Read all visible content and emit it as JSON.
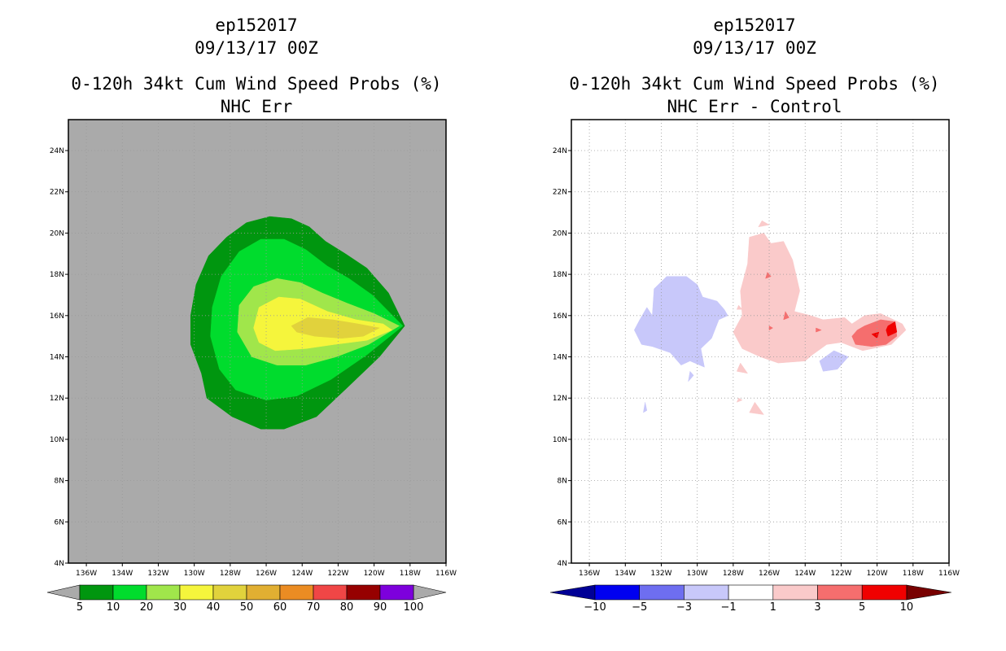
{
  "chart_data": [
    {
      "type": "heatmap",
      "title_lines": [
        "ep152017",
        "09/13/17 00Z",
        "0-120h 34kt Cum Wind Speed Probs (%)",
        "NHC Err"
      ],
      "x_ticks": [
        "136W",
        "134W",
        "132W",
        "130W",
        "128W",
        "126W",
        "124W",
        "122W",
        "120W",
        "118W",
        "116W"
      ],
      "y_ticks": [
        "4N",
        "6N",
        "8N",
        "10N",
        "12N",
        "14N",
        "16N",
        "18N",
        "20N",
        "22N",
        "24N"
      ],
      "xlim": [
        -137,
        -116
      ],
      "ylim": [
        4,
        25.5
      ],
      "grid": true,
      "background": "#aaaaaa",
      "colorbar": {
        "labels": [
          "5",
          "10",
          "20",
          "30",
          "40",
          "50",
          "60",
          "70",
          "80",
          "90",
          "100"
        ],
        "colors": [
          "#00960f",
          "#00dc2d",
          "#a0e64b",
          "#f5f53c",
          "#e1d23c",
          "#e1af32",
          "#eb8c23",
          "#f04646",
          "#960000",
          "#7d00dc"
        ],
        "arrow_colors": [
          "#aaaaaa",
          "#aaaaaa"
        ]
      },
      "contours": [
        {
          "level": "5",
          "color": "#00960f",
          "points": [
            [
              -130.2,
              14.6
            ],
            [
              -130.2,
              16.0
            ],
            [
              -129.9,
              17.5
            ],
            [
              -129.2,
              18.9
            ],
            [
              -128.2,
              19.8
            ],
            [
              -127.1,
              20.5
            ],
            [
              -125.8,
              20.8
            ],
            [
              -124.6,
              20.7
            ],
            [
              -123.6,
              20.3
            ],
            [
              -122.7,
              19.6
            ],
            [
              -121.6,
              19.0
            ],
            [
              -120.4,
              18.3
            ],
            [
              -119.2,
              17.1
            ],
            [
              -118.3,
              15.5
            ],
            [
              -119.7,
              14.0
            ],
            [
              -121.5,
              12.5
            ],
            [
              -123.2,
              11.1
            ],
            [
              -125.0,
              10.5
            ],
            [
              -126.3,
              10.5
            ],
            [
              -127.9,
              11.1
            ],
            [
              -129.3,
              12.0
            ],
            [
              -129.6,
              13.2
            ],
            [
              -130.2,
              14.6
            ]
          ]
        },
        {
          "level": "10",
          "color": "#00dc2d",
          "points": [
            [
              -129.1,
              15.0
            ],
            [
              -129.0,
              16.4
            ],
            [
              -128.5,
              17.9
            ],
            [
              -127.5,
              19.1
            ],
            [
              -126.3,
              19.7
            ],
            [
              -125.0,
              19.7
            ],
            [
              -123.8,
              19.2
            ],
            [
              -122.6,
              18.4
            ],
            [
              -121.4,
              17.8
            ],
            [
              -120.1,
              17.0
            ],
            [
              -118.4,
              15.5
            ],
            [
              -120.4,
              14.1
            ],
            [
              -122.4,
              12.9
            ],
            [
              -124.3,
              12.1
            ],
            [
              -126.0,
              11.9
            ],
            [
              -127.7,
              12.4
            ],
            [
              -128.6,
              13.4
            ],
            [
              -129.1,
              15.0
            ]
          ]
        },
        {
          "level": "20",
          "color": "#a0e64b",
          "points": [
            [
              -127.6,
              15.2
            ],
            [
              -127.5,
              16.5
            ],
            [
              -126.7,
              17.4
            ],
            [
              -125.4,
              17.8
            ],
            [
              -124.1,
              17.6
            ],
            [
              -122.9,
              17.1
            ],
            [
              -121.5,
              16.6
            ],
            [
              -120.0,
              16.1
            ],
            [
              -118.6,
              15.5
            ],
            [
              -120.3,
              14.6
            ],
            [
              -122.1,
              14.0
            ],
            [
              -123.8,
              13.6
            ],
            [
              -125.4,
              13.6
            ],
            [
              -126.8,
              14.0
            ],
            [
              -127.6,
              15.2
            ]
          ]
        },
        {
          "level": "30",
          "color": "#f5f53c",
          "points": [
            [
              -126.7,
              15.4
            ],
            [
              -126.4,
              16.4
            ],
            [
              -125.3,
              16.9
            ],
            [
              -124.1,
              16.8
            ],
            [
              -122.6,
              16.2
            ],
            [
              -121.0,
              15.8
            ],
            [
              -119.5,
              15.6
            ],
            [
              -119.0,
              15.3
            ],
            [
              -120.4,
              14.8
            ],
            [
              -122.2,
              14.6
            ],
            [
              -123.8,
              14.4
            ],
            [
              -125.5,
              14.3
            ],
            [
              -126.4,
              14.7
            ],
            [
              -126.7,
              15.4
            ]
          ]
        },
        {
          "level": "40",
          "color": "#e1d23c",
          "points": [
            [
              -124.6,
              15.5
            ],
            [
              -123.7,
              15.9
            ],
            [
              -122.3,
              15.8
            ],
            [
              -120.9,
              15.6
            ],
            [
              -119.7,
              15.4
            ],
            [
              -120.6,
              15.0
            ],
            [
              -121.8,
              14.9
            ],
            [
              -123.3,
              15.0
            ],
            [
              -124.3,
              15.2
            ],
            [
              -124.6,
              15.5
            ]
          ]
        }
      ]
    },
    {
      "type": "heatmap",
      "title_lines": [
        "ep152017",
        "09/13/17 00Z",
        "0-120h 34kt Cum Wind Speed Probs (%)",
        "NHC Err - Control"
      ],
      "x_ticks": [
        "136W",
        "134W",
        "132W",
        "130W",
        "128W",
        "126W",
        "124W",
        "122W",
        "120W",
        "118W",
        "116W"
      ],
      "y_ticks": [
        "4N",
        "6N",
        "8N",
        "10N",
        "12N",
        "14N",
        "16N",
        "18N",
        "20N",
        "22N",
        "24N"
      ],
      "xlim": [
        -137,
        -116
      ],
      "ylim": [
        4,
        25.5
      ],
      "grid": true,
      "background": "#ffffff",
      "colorbar": {
        "labels": [
          "-10",
          "-5",
          "-3",
          "-1",
          "1",
          "3",
          "5",
          "10"
        ],
        "colors": [
          "#0000f0",
          "#6e6ef0",
          "#c8c8fa",
          "#ffffff",
          "#facaca",
          "#f56e6e",
          "#f00000"
        ],
        "arrow_colors": [
          "#000096",
          "#780000"
        ]
      },
      "contours": [
        {
          "level": "-3 to -1",
          "color": "#c8c8fa",
          "points": [
            [
              -133.2,
              15.8
            ],
            [
              -132.8,
              16.4
            ],
            [
              -132.5,
              16.0
            ],
            [
              -132.4,
              17.3
            ],
            [
              -131.7,
              17.9
            ],
            [
              -130.6,
              17.9
            ],
            [
              -130.0,
              17.5
            ],
            [
              -129.7,
              16.9
            ],
            [
              -128.9,
              16.7
            ],
            [
              -128.5,
              16.3
            ],
            [
              -128.3,
              16.0
            ],
            [
              -128.8,
              15.8
            ],
            [
              -129.2,
              14.9
            ],
            [
              -129.8,
              14.4
            ],
            [
              -129.6,
              13.5
            ],
            [
              -130.4,
              13.8
            ],
            [
              -130.9,
              13.6
            ],
            [
              -131.5,
              14.2
            ],
            [
              -132.5,
              14.5
            ],
            [
              -133.1,
              14.6
            ],
            [
              -133.5,
              15.3
            ],
            [
              -133.2,
              15.8
            ]
          ]
        },
        {
          "level": "-3 to -1",
          "color": "#c8c8fa",
          "points": [
            [
              -123.2,
              13.8
            ],
            [
              -122.4,
              14.3
            ],
            [
              -121.6,
              14.0
            ],
            [
              -122.2,
              13.4
            ],
            [
              -123.0,
              13.3
            ],
            [
              -123.2,
              13.8
            ]
          ]
        },
        {
          "level": "-3 to -1",
          "color": "#c8c8fa",
          "points": [
            [
              -130.4,
              13.3
            ],
            [
              -130.2,
              13.1
            ],
            [
              -130.5,
              12.8
            ],
            [
              -130.4,
              13.3
            ]
          ]
        },
        {
          "level": "-3 to -1",
          "color": "#c8c8fa",
          "points": [
            [
              -132.9,
              11.8
            ],
            [
              -132.8,
              11.4
            ],
            [
              -133.0,
              11.3
            ],
            [
              -132.9,
              11.8
            ]
          ]
        },
        {
          "level": "1 to 3",
          "color": "#facaca",
          "points": [
            [
              -126.3,
              20.0
            ],
            [
              -125.9,
              19.5
            ],
            [
              -125.2,
              19.6
            ],
            [
              -124.7,
              18.7
            ],
            [
              -124.3,
              17.2
            ],
            [
              -124.6,
              16.2
            ],
            [
              -123.7,
              16.0
            ],
            [
              -123.0,
              15.8
            ],
            [
              -121.8,
              15.9
            ],
            [
              -121.4,
              15.6
            ],
            [
              -120.7,
              16.0
            ],
            [
              -119.8,
              16.1
            ],
            [
              -118.6,
              15.6
            ],
            [
              -118.4,
              15.3
            ],
            [
              -119.2,
              14.6
            ],
            [
              -120.8,
              14.3
            ],
            [
              -122.0,
              14.7
            ],
            [
              -122.8,
              14.6
            ],
            [
              -123.6,
              14.1
            ],
            [
              -124.0,
              13.8
            ],
            [
              -125.5,
              13.7
            ],
            [
              -126.5,
              14.0
            ],
            [
              -127.5,
              14.4
            ],
            [
              -128.0,
              15.2
            ],
            [
              -127.5,
              16.0
            ],
            [
              -127.6,
              17.2
            ],
            [
              -127.2,
              18.5
            ],
            [
              -127.1,
              19.8
            ],
            [
              -126.3,
              20.0
            ]
          ]
        },
        {
          "level": "1 to 3",
          "color": "#facaca",
          "points": [
            [
              -126.4,
              20.6
            ],
            [
              -126.0,
              20.4
            ],
            [
              -126.6,
              20.3
            ],
            [
              -126.4,
              20.6
            ]
          ]
        },
        {
          "level": "1 to 3",
          "color": "#facaca",
          "points": [
            [
              -127.6,
              13.7
            ],
            [
              -127.2,
              13.2
            ],
            [
              -127.8,
              13.3
            ],
            [
              -127.6,
              13.7
            ]
          ]
        },
        {
          "level": "1 to 3",
          "color": "#facaca",
          "points": [
            [
              -126.8,
              11.8
            ],
            [
              -126.3,
              11.2
            ],
            [
              -127.1,
              11.3
            ],
            [
              -126.8,
              11.8
            ]
          ]
        },
        {
          "level": "1 to 3",
          "color": "#facaca",
          "points": [
            [
              -127.7,
              12.0
            ],
            [
              -127.5,
              11.9
            ],
            [
              -127.8,
              11.8
            ],
            [
              -127.7,
              12.0
            ]
          ]
        },
        {
          "level": "1 to 3",
          "color": "#facaca",
          "points": [
            [
              -127.7,
              16.5
            ],
            [
              -127.5,
              16.3
            ],
            [
              -127.8,
              16.3
            ],
            [
              -127.7,
              16.5
            ]
          ]
        },
        {
          "level": "3 to 5",
          "color": "#f56e6e",
          "points": [
            [
              -120.7,
              15.5
            ],
            [
              -119.8,
              15.8
            ],
            [
              -119.0,
              15.7
            ],
            [
              -118.9,
              15.0
            ],
            [
              -119.5,
              14.6
            ],
            [
              -120.3,
              14.5
            ],
            [
              -121.2,
              14.6
            ],
            [
              -121.4,
              15.0
            ],
            [
              -121.1,
              15.3
            ],
            [
              -120.7,
              15.5
            ]
          ]
        },
        {
          "level": "3 to 5",
          "color": "#f56e6e",
          "points": [
            [
              -126.1,
              18.1
            ],
            [
              -125.9,
              17.9
            ],
            [
              -126.2,
              17.8
            ],
            [
              -126.1,
              18.1
            ]
          ]
        },
        {
          "level": "3 to 5",
          "color": "#f56e6e",
          "points": [
            [
              -125.1,
              16.2
            ],
            [
              -124.9,
              15.9
            ],
            [
              -125.2,
              15.8
            ],
            [
              -125.1,
              16.2
            ]
          ]
        },
        {
          "level": "3 to 5",
          "color": "#f56e6e",
          "points": [
            [
              -126.0,
              15.5
            ],
            [
              -125.8,
              15.4
            ],
            [
              -126.0,
              15.3
            ],
            [
              -126.0,
              15.5
            ]
          ]
        },
        {
          "level": "3 to 5",
          "color": "#f56e6e",
          "points": [
            [
              -123.4,
              15.4
            ],
            [
              -123.1,
              15.3
            ],
            [
              -123.4,
              15.2
            ],
            [
              -123.4,
              15.4
            ]
          ]
        },
        {
          "level": "5 to 10",
          "color": "#f00000",
          "points": [
            [
              -119.4,
              15.5
            ],
            [
              -119.0,
              15.7
            ],
            [
              -118.9,
              15.2
            ],
            [
              -119.4,
              15.0
            ],
            [
              -119.5,
              15.3
            ],
            [
              -119.4,
              15.5
            ]
          ]
        },
        {
          "level": "5 to 10",
          "color": "#f00000",
          "points": [
            [
              -120.3,
              15.1
            ],
            [
              -119.9,
              15.2
            ],
            [
              -120.0,
              14.9
            ],
            [
              -120.3,
              15.1
            ]
          ]
        }
      ]
    }
  ]
}
